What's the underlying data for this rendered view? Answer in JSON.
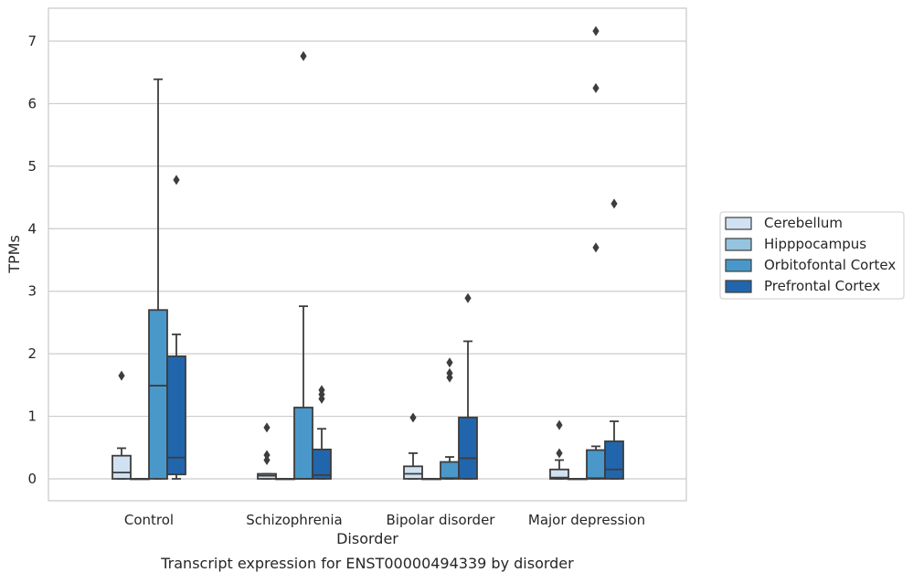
{
  "chart_data": {
    "type": "box",
    "xlabel": "Disorder",
    "ylabel": "TPMs",
    "caption": "Transcript expression for ENST00000494339 by disorder",
    "categories": [
      "Control",
      "Schizophrenia",
      "Bipolar disorder",
      "Major depression"
    ],
    "ylim": [
      -0.35,
      7.55
    ],
    "yticks": [
      0,
      1,
      2,
      3,
      4,
      5,
      6,
      7
    ],
    "grid": "horizontal",
    "legend_position": "right",
    "series": [
      {
        "name": "Cerebellum",
        "color": "#d0e1f2",
        "boxes": [
          {
            "q1": 0.0,
            "median": 0.1,
            "q3": 0.37,
            "wlo": 0.0,
            "whi": 0.49,
            "outliers": [
              1.65
            ]
          },
          {
            "q1": 0.0,
            "median": 0.05,
            "q3": 0.08,
            "wlo": 0.0,
            "whi": 0.08,
            "outliers": [
              0.3,
              0.38,
              0.82
            ]
          },
          {
            "q1": 0.0,
            "median": 0.08,
            "q3": 0.2,
            "wlo": 0.0,
            "whi": 0.41,
            "outliers": [
              0.98
            ]
          },
          {
            "q1": 0.0,
            "median": 0.02,
            "q3": 0.15,
            "wlo": 0.0,
            "whi": 0.3,
            "outliers": [
              0.41,
              0.86
            ]
          }
        ]
      },
      {
        "name": "Hipppocampus",
        "color": "#94c4df",
        "boxes": [
          {
            "q1": 0.0,
            "median": 0.0,
            "q3": 0.0,
            "wlo": 0.0,
            "whi": 0.0,
            "outliers": []
          },
          {
            "q1": 0.0,
            "median": 0.0,
            "q3": 0.0,
            "wlo": 0.0,
            "whi": 0.0,
            "outliers": []
          },
          {
            "q1": 0.0,
            "median": 0.0,
            "q3": 0.0,
            "wlo": 0.0,
            "whi": 0.0,
            "outliers": []
          },
          {
            "q1": 0.0,
            "median": 0.0,
            "q3": 0.0,
            "wlo": 0.0,
            "whi": 0.0,
            "outliers": []
          }
        ]
      },
      {
        "name": "Orbitofontal Cortex",
        "color": "#4a98c9",
        "boxes": [
          {
            "q1": 0.0,
            "median": 1.49,
            "q3": 2.7,
            "wlo": 0.0,
            "whi": 6.39,
            "outliers": []
          },
          {
            "q1": 0.0,
            "median": 0.0,
            "q3": 1.14,
            "wlo": 0.0,
            "whi": 2.76,
            "outliers": [
              6.76
            ]
          },
          {
            "q1": 0.0,
            "median": 0.01,
            "q3": 0.27,
            "wlo": 0.0,
            "whi": 0.35,
            "outliers": [
              1.62,
              1.69,
              1.86
            ]
          },
          {
            "q1": 0.0,
            "median": 0.01,
            "q3": 0.46,
            "wlo": 0.0,
            "whi": 0.52,
            "outliers": [
              3.7,
              6.25,
              7.16
            ]
          }
        ]
      },
      {
        "name": "Prefrontal Cortex",
        "color": "#2166ac",
        "boxes": [
          {
            "q1": 0.07,
            "median": 0.34,
            "q3": 1.96,
            "wlo": 0.0,
            "whi": 2.31,
            "outliers": [
              4.78
            ]
          },
          {
            "q1": 0.0,
            "median": 0.06,
            "q3": 0.47,
            "wlo": 0.0,
            "whi": 0.8,
            "outliers": [
              1.28,
              1.35,
              1.42
            ]
          },
          {
            "q1": 0.0,
            "median": 0.33,
            "q3": 0.98,
            "wlo": 0.0,
            "whi": 2.2,
            "outliers": [
              2.89
            ]
          },
          {
            "q1": 0.0,
            "median": 0.15,
            "q3": 0.6,
            "wlo": 0.0,
            "whi": 0.92,
            "outliers": [
              4.4
            ]
          }
        ]
      }
    ]
  }
}
